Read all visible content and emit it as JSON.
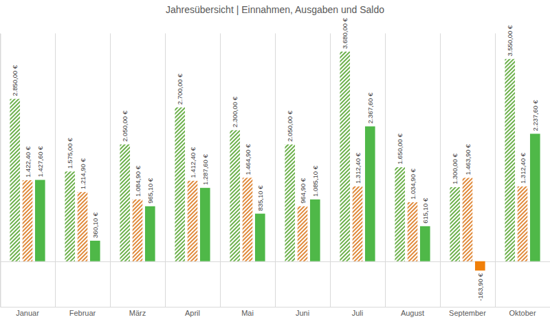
{
  "chart_data": {
    "type": "bar",
    "title": "Jahresübersicht | Einnahmen, Ausgaben und Saldo",
    "categories": [
      "Januar",
      "Februar",
      "März",
      "April",
      "Mai",
      "Juni",
      "Juli",
      "August",
      "September",
      "Oktober"
    ],
    "series": [
      {
        "color": "#6bb04a",
        "values": [
          2850,
          1575,
          2050,
          2700,
          2300,
          2050,
          3680,
          1650,
          1300,
          3550
        ],
        "value_labels": [
          "2.850,00 €",
          "1.575,00 €",
          "2.050,00 €",
          "2.700,00 €",
          "2.300,00 €",
          "2.050,00 €",
          "3.680,00 €",
          "1.650,00 €",
          "1.300,00 €",
          "3.550,00 €"
        ]
      },
      {
        "color": "#e0893a",
        "values": [
          1422.4,
          1214.9,
          1084.9,
          1412.4,
          1464.9,
          964.9,
          1312.4,
          1034.9,
          1463.9,
          1312.4
        ],
        "value_labels": [
          "1.422,40 €",
          "1.214,90 €",
          "1.084,90 €",
          "1.412,40 €",
          "1.464,90 €",
          "964,90 €",
          "1.312,40 €",
          "1.034,90 €",
          "1.463,90 €",
          "1.312,40 €"
        ]
      },
      {
        "colors": [
          "#4fb848",
          "#4fb848",
          "#4fb848",
          "#4fb848",
          "#4fb848",
          "#4fb848",
          "#4fb848",
          "#4fb848",
          "#f07f09",
          "#4fb848"
        ],
        "values": [
          1427.6,
          360.1,
          965.1,
          1287.6,
          835.1,
          1085.1,
          2367.6,
          615.1,
          -163.9,
          2237.6
        ],
        "value_labels": [
          "1.427,60 €",
          "360,10 €",
          "965,10 €",
          "1.287,60 €",
          "835,10 €",
          "1.085,10 €",
          "2.367,60 €",
          "615,10 €",
          "-163,90 €",
          "2.237,60 €"
        ]
      }
    ],
    "ylim": [
      -800,
      4000
    ],
    "yticks": [
      0
    ],
    "grid": true,
    "data_labels": true,
    "tick_labels": "x"
  }
}
